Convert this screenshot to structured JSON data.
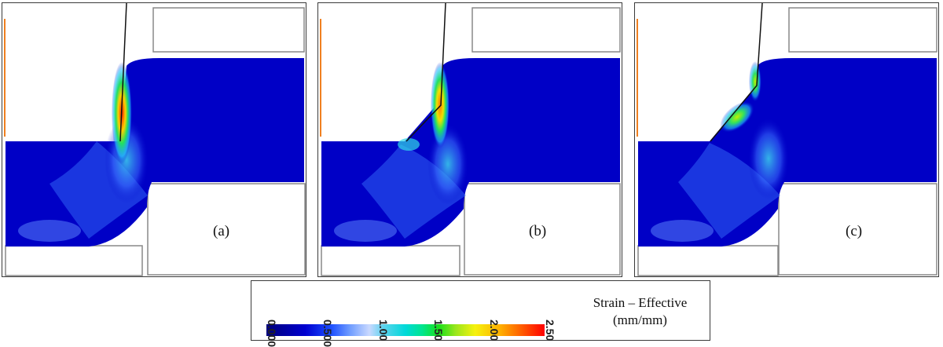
{
  "panels": [
    {
      "label": "(a)",
      "variant": "a"
    },
    {
      "label": "(b)",
      "variant": "b"
    },
    {
      "label": "(c)",
      "variant": "c"
    }
  ],
  "legend": {
    "ticks": [
      "0.000",
      "0.500",
      "1.00",
      "1.50",
      "2.00",
      "2.50"
    ],
    "tick_values": [
      0.0,
      0.5,
      1.0,
      1.5,
      2.0,
      2.5
    ],
    "range": [
      0.0,
      2.5
    ],
    "title": "Strain – Effective",
    "unit": "(mm/mm)",
    "colors": [
      "#00007a",
      "#0000d0",
      "#6f9cff",
      "#00d9d9",
      "#19e019",
      "#f6f20e",
      "#ff5a00",
      "#ff0000"
    ]
  }
}
